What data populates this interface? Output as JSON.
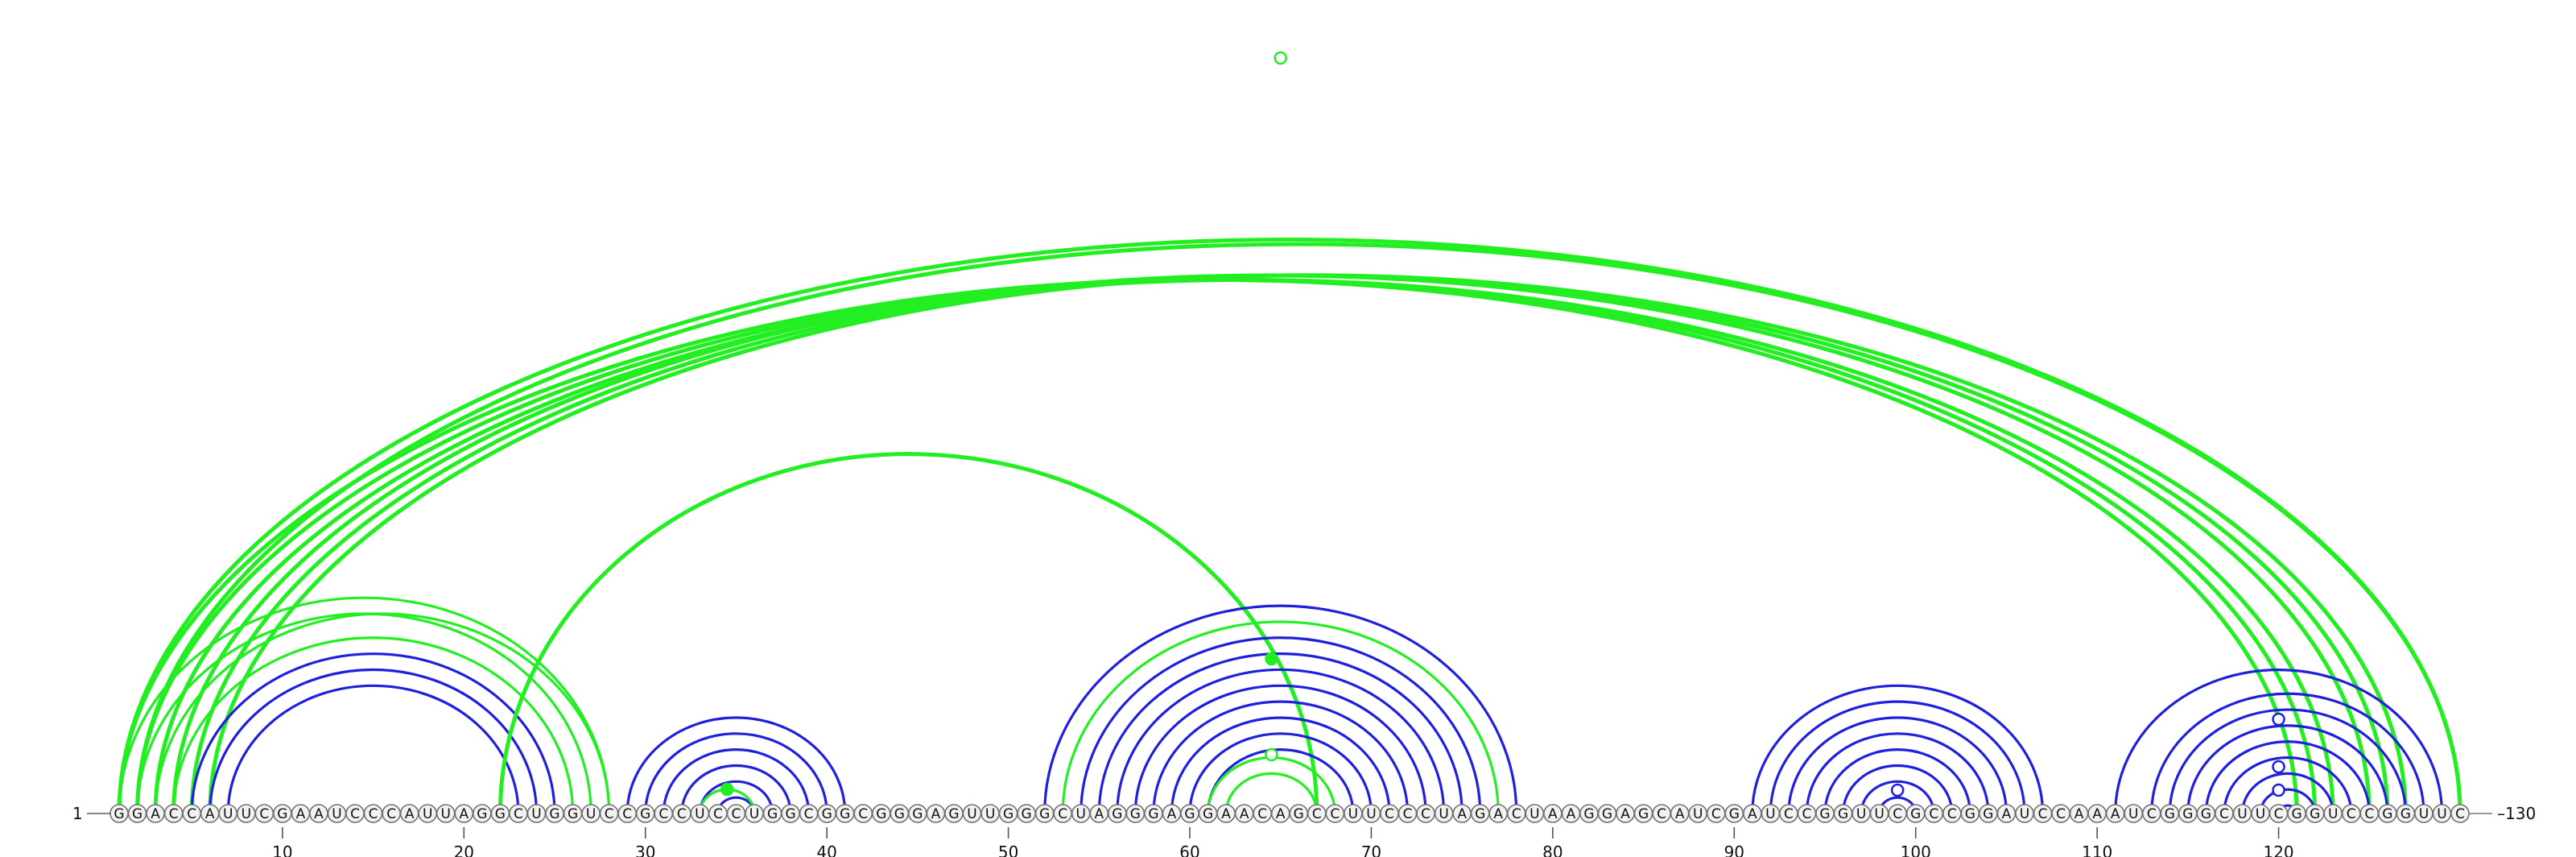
{
  "diagram": {
    "type": "rna-arc-diagram",
    "sequence": "GGACCAUUCGAAUCCCAUUAGGCUGGUCCGCCUCCUGGCGGCGGGAGUUGGGCUAGGGAGGAACAGCCUUCCCUAGACUAAGGAGCAUCGAUCCGGUUCGCCGGAUCCAAAUCGGGCUUCGGUCCGGUUC",
    "start_label": "1",
    "end_label": "130",
    "tick_positions": [
      10,
      20,
      30,
      40,
      50,
      60,
      70,
      80,
      90,
      100,
      110,
      120
    ],
    "tick_labels": [
      "10",
      "20",
      "30",
      "40",
      "50",
      "60",
      "70",
      "80",
      "90",
      "100",
      "110",
      "120"
    ],
    "colors": {
      "green": "#22ee22",
      "blue": "#1f1fdd"
    },
    "arc_groups": [
      {
        "color": "green",
        "pairs": [
          [
            1,
            121
          ],
          [
            2,
            122
          ],
          [
            3,
            123
          ],
          [
            4,
            125
          ],
          [
            5,
            126
          ],
          [
            6,
            127
          ],
          [
            1,
            130
          ],
          [
            2,
            130
          ]
        ],
        "weight": "bold"
      },
      {
        "color": "green",
        "pairs": [
          [
            3,
            28
          ],
          [
            2,
            27
          ],
          [
            1,
            28
          ],
          [
            4,
            26
          ]
        ],
        "weight": "normal"
      },
      {
        "color": "blue",
        "pairs": [
          [
            5,
            25
          ],
          [
            6,
            24
          ],
          [
            7,
            23
          ]
        ],
        "weight": "normal"
      },
      {
        "color": "green",
        "pairs": [
          [
            22,
            67
          ]
        ],
        "weight": "bold"
      },
      {
        "color": "blue",
        "pairs": [
          [
            29,
            41
          ],
          [
            30,
            40
          ],
          [
            31,
            39
          ],
          [
            32,
            38
          ],
          [
            33,
            37
          ],
          [
            34,
            36
          ]
        ],
        "weight": "normal"
      },
      {
        "color": "green",
        "pairs": [
          [
            33,
            36
          ]
        ],
        "weight": "normal"
      },
      {
        "color": "blue",
        "pairs": [
          [
            52,
            78
          ],
          [
            54,
            76
          ],
          [
            55,
            75
          ],
          [
            56,
            74
          ],
          [
            57,
            73
          ],
          [
            58,
            72
          ],
          [
            59,
            71
          ],
          [
            60,
            70
          ],
          [
            61,
            69
          ]
        ],
        "weight": "normal"
      },
      {
        "color": "green",
        "pairs": [
          [
            53,
            77
          ],
          [
            61,
            68
          ],
          [
            62,
            67
          ]
        ],
        "weight": "normal"
      },
      {
        "color": "blue",
        "pairs": [
          [
            91,
            107
          ],
          [
            92,
            106
          ],
          [
            93,
            105
          ],
          [
            94,
            104
          ],
          [
            95,
            103
          ],
          [
            96,
            102
          ],
          [
            97,
            101
          ],
          [
            98,
            100
          ]
        ],
        "weight": "normal"
      },
      {
        "color": "blue",
        "pairs": [
          [
            111,
            129
          ],
          [
            113,
            128
          ],
          [
            114,
            127
          ],
          [
            115,
            126
          ],
          [
            116,
            125
          ],
          [
            117,
            124
          ],
          [
            118,
            123
          ],
          [
            119,
            122
          ],
          [
            120,
            121
          ]
        ],
        "weight": "normal"
      }
    ],
    "markers": [
      {
        "pos": 65,
        "height": 0.93,
        "color": "green",
        "filled": false
      },
      {
        "pos": 34.5,
        "height": 0.0,
        "color": "green",
        "filled": true
      },
      {
        "pos": 64.5,
        "height": 0.15,
        "color": "green",
        "filled": true
      },
      {
        "pos": 64.5,
        "height": 0.08,
        "color": "green",
        "filled": false
      },
      {
        "pos": 99,
        "height": 0.02,
        "color": "blue",
        "filled": false
      },
      {
        "pos": 120,
        "height": 0.07,
        "color": "blue",
        "filled": false
      },
      {
        "pos": 120,
        "height": 0.15,
        "color": "blue",
        "filled": false
      },
      {
        "pos": 120,
        "height": 0.03,
        "color": "blue",
        "filled": false
      }
    ]
  }
}
